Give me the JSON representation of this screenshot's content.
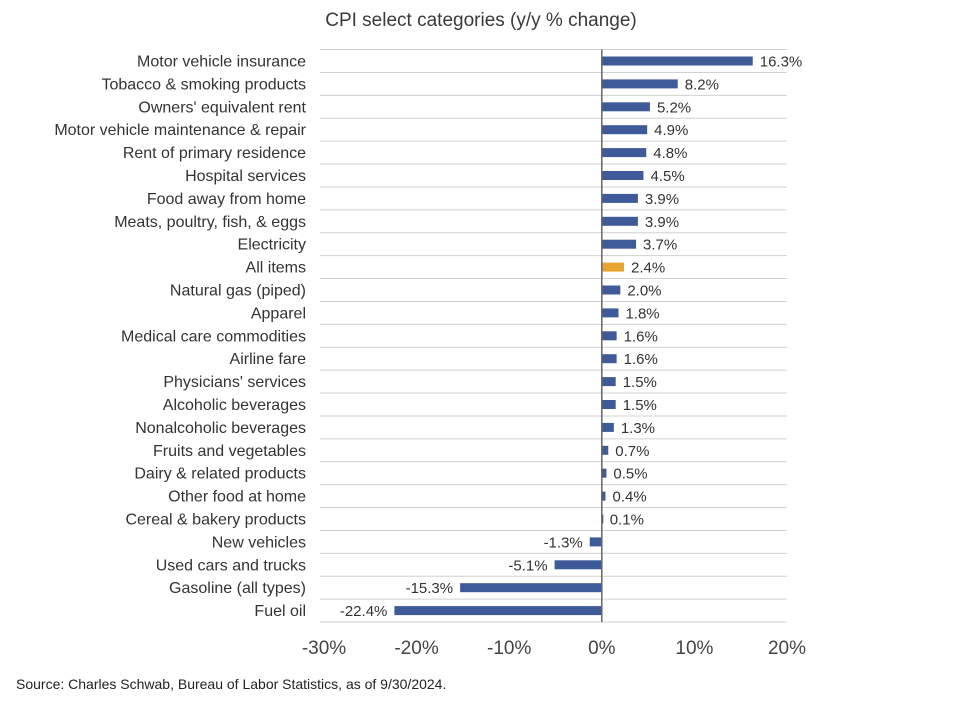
{
  "chart_data": {
    "type": "bar",
    "orientation": "horizontal",
    "title": "CPI select categories (y/y % change)",
    "categories": [
      "Motor vehicle insurance",
      "Tobacco & smoking products",
      "Owners' equivalent rent",
      "Motor vehicle maintenance & repair",
      "Rent of primary residence",
      "Hospital services",
      "Food away from home",
      "Meats, poultry, fish, & eggs",
      "Electricity",
      "All items",
      "Natural gas (piped)",
      "Apparel",
      "Medical care commodities",
      "Airline fare",
      "Physicians' services",
      "Alcoholic beverages",
      "Nonalcoholic beverages",
      "Fruits and vegetables",
      "Dairy & related products",
      "Other food at home",
      "Cereal & bakery products",
      "New vehicles",
      "Used cars and trucks",
      "Gasoline (all types)",
      "Fuel oil"
    ],
    "values": [
      16.3,
      8.2,
      5.2,
      4.9,
      4.8,
      4.5,
      3.9,
      3.9,
      3.7,
      2.4,
      2.0,
      1.8,
      1.6,
      1.6,
      1.5,
      1.5,
      1.3,
      0.7,
      0.5,
      0.4,
      0.1,
      -1.3,
      -5.1,
      -15.3,
      -22.4
    ],
    "value_labels": [
      "16.3%",
      "8.2%",
      "5.2%",
      "4.9%",
      "4.8%",
      "4.5%",
      "3.9%",
      "3.9%",
      "3.7%",
      "2.4%",
      "2.0%",
      "1.8%",
      "1.6%",
      "1.6%",
      "1.5%",
      "1.5%",
      "1.3%",
      "0.7%",
      "0.5%",
      "0.4%",
      "0.1%",
      "-1.3%",
      "-5.1%",
      "-15.3%",
      "-22.4%"
    ],
    "highlight_category": "All items",
    "xlim": [
      -30,
      20
    ],
    "xticks": [
      -30,
      -20,
      -10,
      0,
      10,
      20
    ],
    "xtick_labels": [
      "-30%",
      "-20%",
      "-10%",
      "0%",
      "10%",
      "20%"
    ],
    "grid": "horizontal",
    "legend": "none",
    "colors": {
      "bar": "#3f5a98",
      "highlight": "#e8a532",
      "grid": "#d0d0d0",
      "axis": "#666666"
    }
  },
  "footer": {
    "source": "Source: Charles Schwab, Bureau of Labor Statistics, as of 9/30/2024."
  }
}
